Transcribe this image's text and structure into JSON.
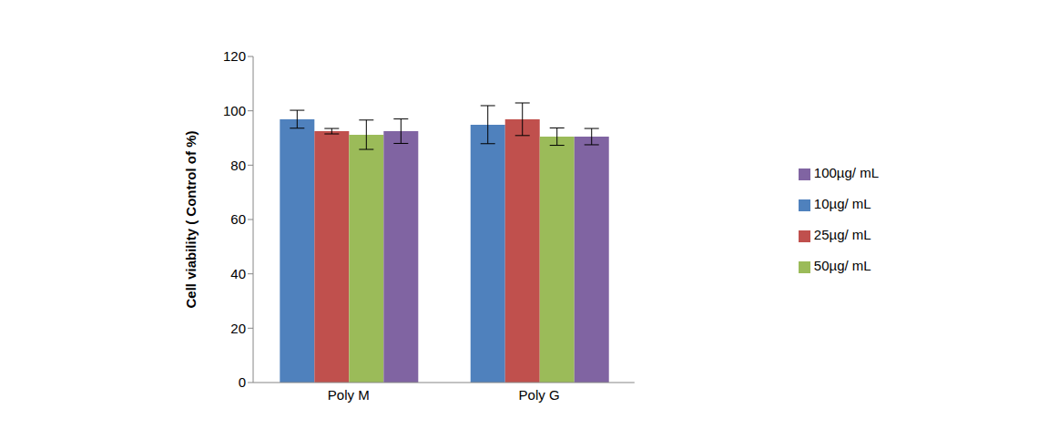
{
  "chart_data": {
    "type": "bar",
    "y_label": "Cell  viability ( Control  of  %)",
    "categories": [
      "Poly M",
      "Poly G"
    ],
    "series": [
      {
        "name": "10µg/ mL",
        "color": "#4f81bd",
        "values": [
          96.9,
          94.9
        ],
        "errors": [
          3.3,
          7
        ]
      },
      {
        "name": "25µg/ mL",
        "color": "#c0504d",
        "values": [
          92.5,
          96.9
        ],
        "errors": [
          1,
          6
        ]
      },
      {
        "name": "50µg/ mL",
        "color": "#9bbb59",
        "values": [
          91.2,
          90.5
        ],
        "errors": [
          5.4,
          3.2
        ]
      },
      {
        "name": "100µg/ mL",
        "color": "#8064a2",
        "values": [
          92.5,
          90.5
        ],
        "errors": [
          4.5,
          3
        ]
      }
    ],
    "ylim": [
      0,
      120
    ],
    "yticks": [
      0,
      20,
      40,
      60,
      80,
      100,
      120
    ],
    "grid": false,
    "legend": "right"
  }
}
